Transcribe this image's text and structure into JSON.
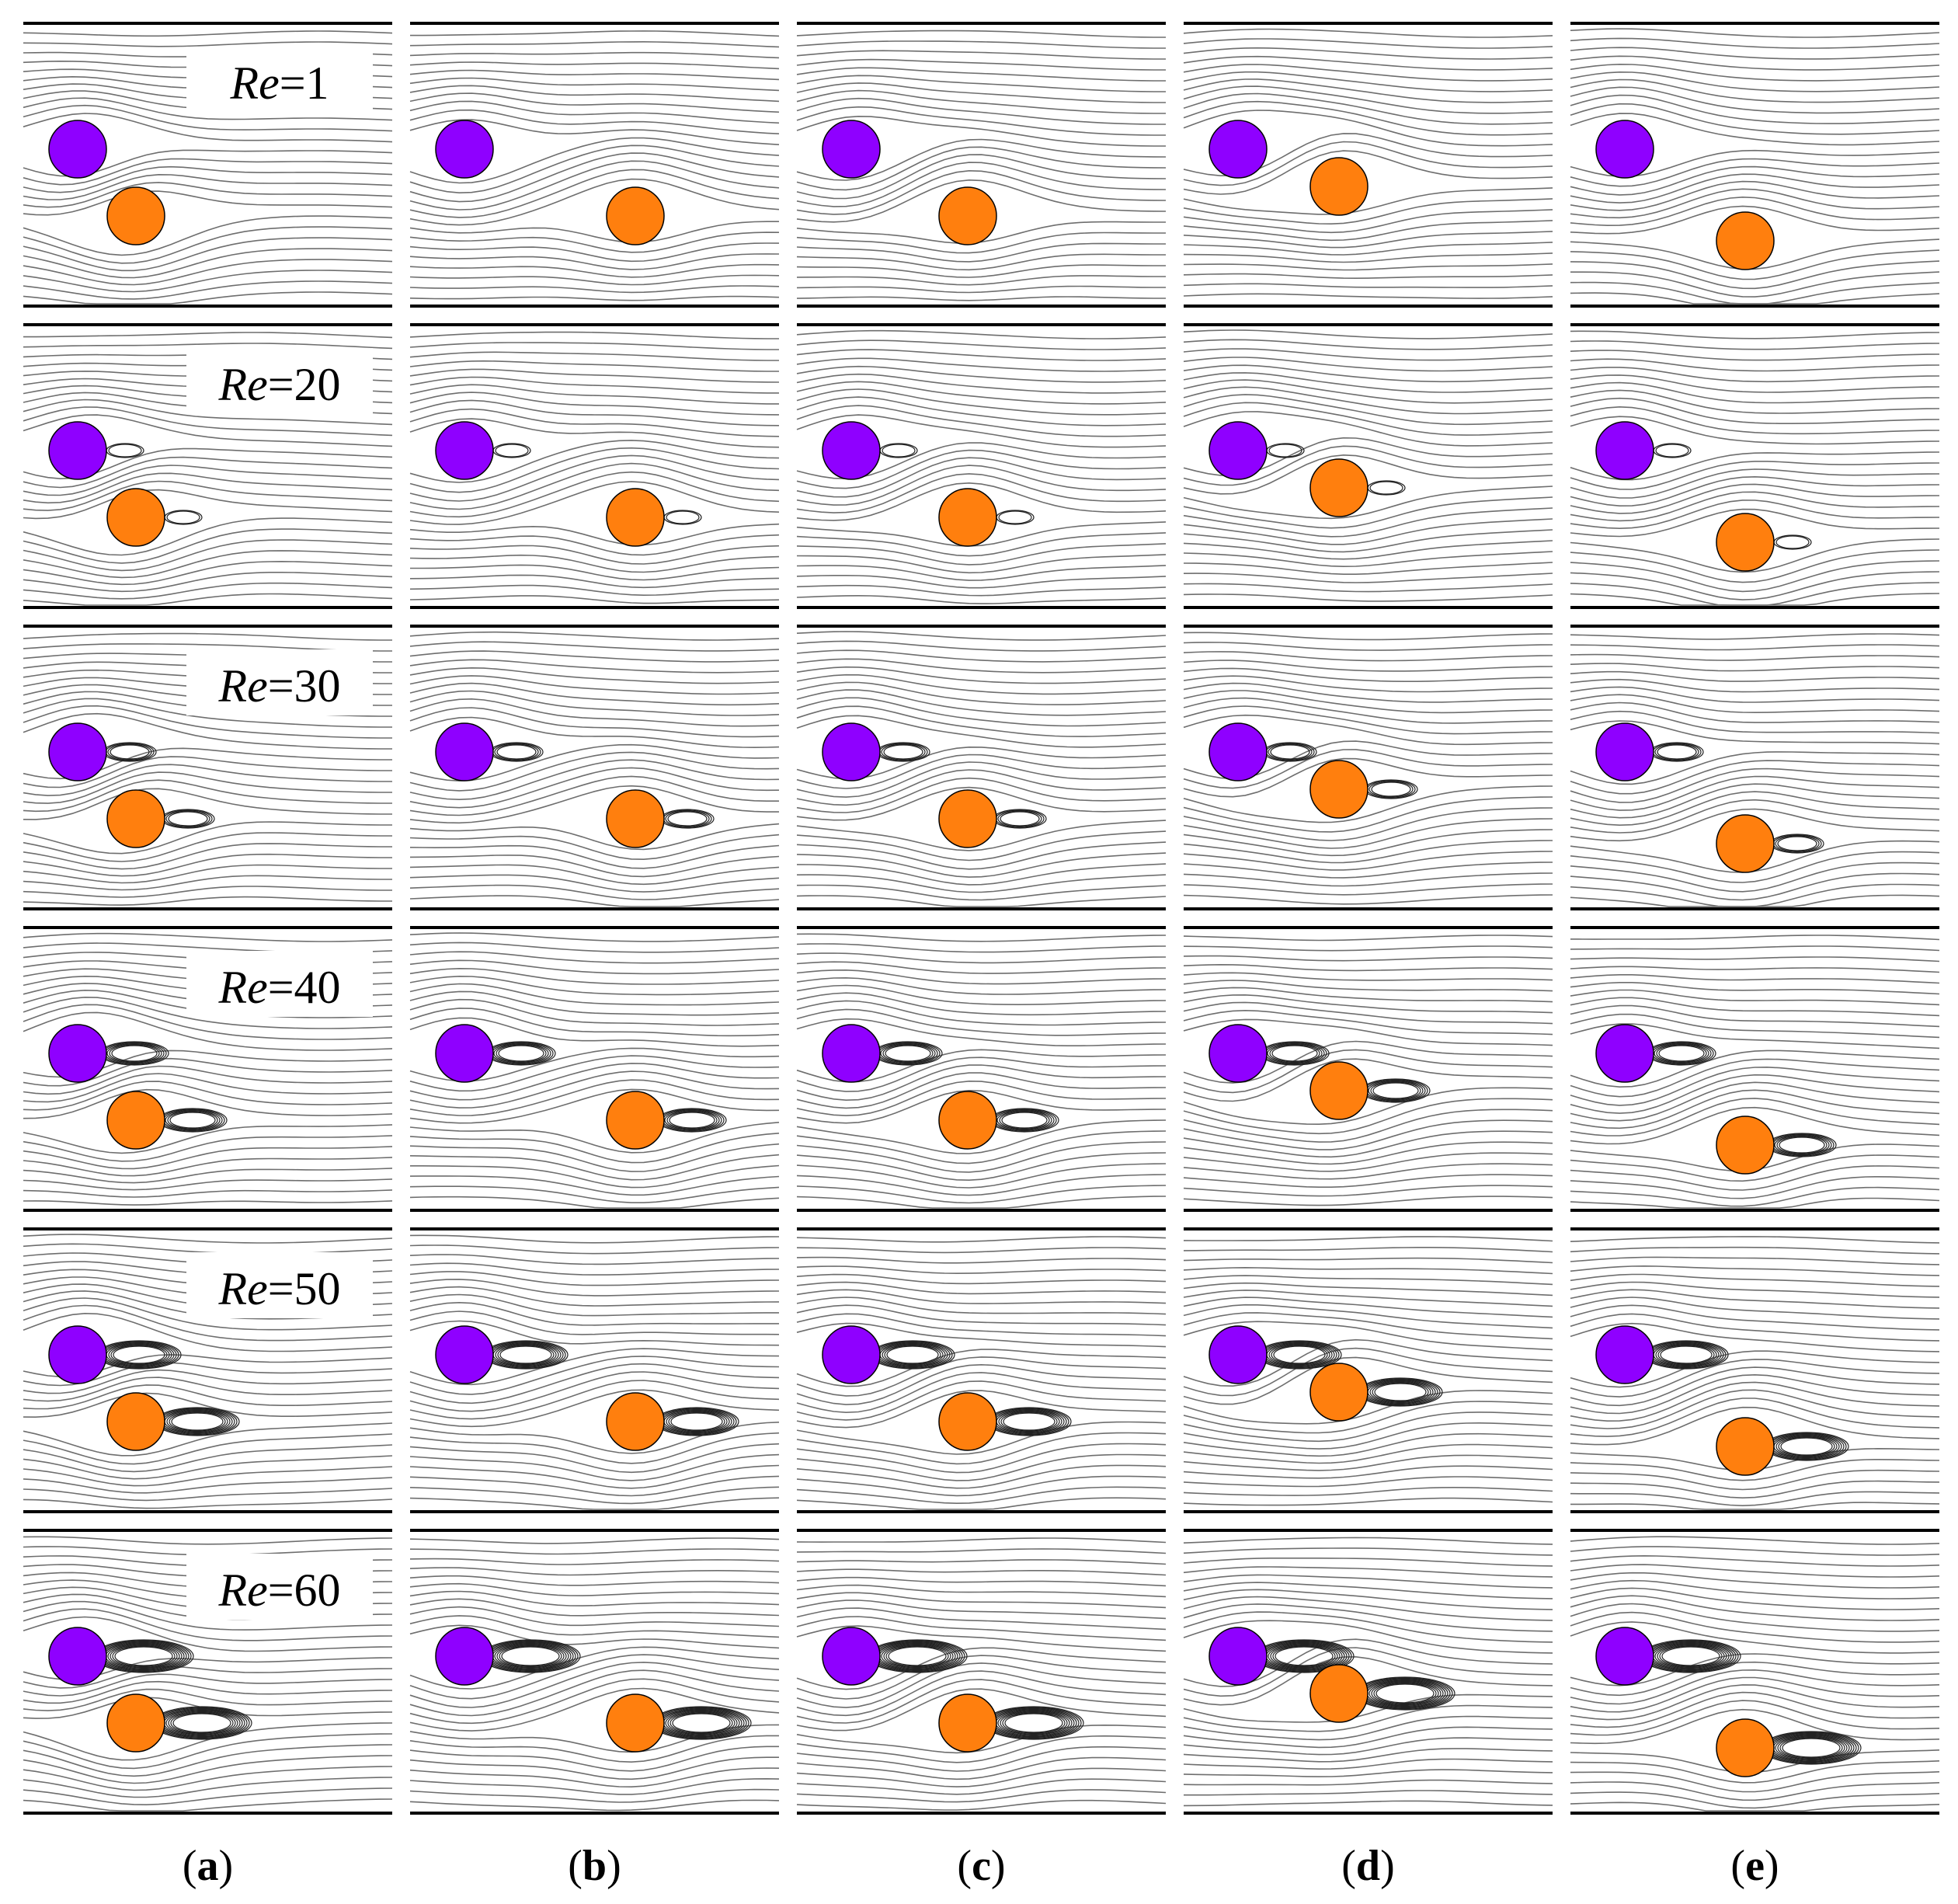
{
  "figure": {
    "rows": [
      {
        "re_label": "Re",
        "re_value": "=1"
      },
      {
        "re_label": "Re",
        "re_value": "=20"
      },
      {
        "re_label": "Re",
        "re_value": "=30"
      },
      {
        "re_label": "Re",
        "re_value": "=40"
      },
      {
        "re_label": "Re",
        "re_value": "=50"
      },
      {
        "re_label": "Re",
        "re_value": "=60"
      }
    ],
    "columns": [
      {
        "open": "(",
        "letter": "a",
        "close": ")"
      },
      {
        "open": "(",
        "letter": "b",
        "close": ")"
      },
      {
        "open": "(",
        "letter": "c",
        "close": ")"
      },
      {
        "open": "(",
        "letter": "d",
        "close": ")"
      },
      {
        "open": "(",
        "letter": "e",
        "close": ")"
      }
    ],
    "colors": {
      "upstream_cylinder": "#8f00ff",
      "downstream_cylinder": "#ff7f0e",
      "streamline": "#6e6e6e",
      "wall": "#000000"
    }
  }
}
